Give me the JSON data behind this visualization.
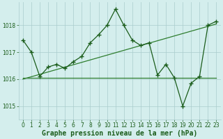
{
  "title": "Graphe pression niveau de la mer (hPa)",
  "xlim": [
    -0.5,
    23.5
  ],
  "ylim": [
    1014.5,
    1018.85
  ],
  "yticks": [
    1015,
    1016,
    1017,
    1018
  ],
  "xticks": [
    0,
    1,
    2,
    3,
    4,
    5,
    6,
    7,
    8,
    9,
    10,
    11,
    12,
    13,
    14,
    15,
    16,
    17,
    18,
    19,
    20,
    21,
    22,
    23
  ],
  "bg_color": "#d4eeed",
  "grid_color": "#aacccc",
  "dark_green": "#1a5c1a",
  "mid_green": "#2e7d2e",
  "main_x": [
    0,
    1,
    2,
    3,
    4,
    5,
    6,
    7,
    8,
    9,
    10,
    11,
    12,
    13,
    14,
    15,
    16,
    17,
    18,
    19,
    20,
    21,
    22,
    23
  ],
  "main_y": [
    1017.45,
    1017.0,
    1016.1,
    1016.45,
    1016.55,
    1016.4,
    1016.65,
    1016.85,
    1017.35,
    1017.65,
    1018.0,
    1018.6,
    1018.0,
    1017.45,
    1017.25,
    1017.35,
    1016.15,
    1016.55,
    1016.05,
    1015.0,
    1015.85,
    1016.1,
    1018.0,
    1018.15
  ],
  "flat_x": [
    0,
    1,
    2,
    3,
    4,
    5,
    6,
    7,
    8,
    9,
    10,
    11,
    12,
    13,
    14,
    15,
    16,
    17,
    18,
    19,
    20,
    21,
    22,
    23
  ],
  "flat_y": [
    1016.05,
    1016.05,
    1016.05,
    1016.05,
    1016.05,
    1016.05,
    1016.05,
    1016.05,
    1016.05,
    1016.05,
    1016.05,
    1016.05,
    1016.05,
    1016.05,
    1016.05,
    1016.05,
    1016.05,
    1016.05,
    1016.05,
    1016.05,
    1016.05,
    1016.05,
    1016.05,
    1016.05
  ],
  "trend_x": [
    0,
    23
  ],
  "trend_y": [
    1016.0,
    1018.05
  ],
  "marker": "+",
  "markersize": 4,
  "linewidth": 0.9,
  "title_fontsize": 7,
  "tick_fontsize": 5.5
}
